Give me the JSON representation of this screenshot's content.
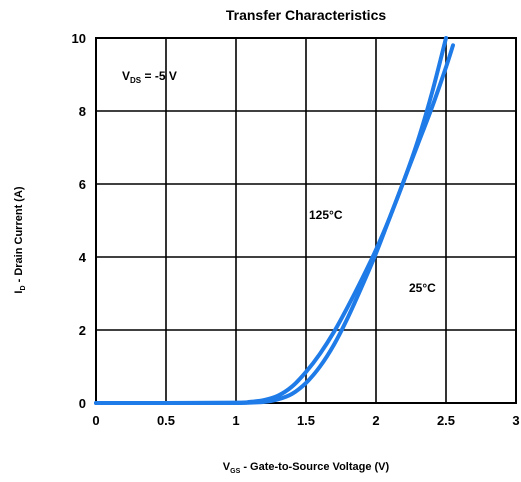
{
  "chart_data": {
    "type": "line",
    "title": "Transfer Characteristics",
    "xlabel_main": "V",
    "xlabel_sub": "GS",
    "xlabel_rest": " - Gate-to-Source Voltage (V)",
    "ylabel_main": "I",
    "ylabel_sub": "D",
    "ylabel_rest": " - Drain Current (A)",
    "xlim": [
      0,
      3
    ],
    "ylim": [
      0,
      10
    ],
    "x_ticks": [
      0,
      0.5,
      1,
      1.5,
      2,
      2.5,
      3
    ],
    "x_tick_labels": [
      "0",
      "0.5",
      "1",
      "1.5",
      "2",
      "2.5",
      "3"
    ],
    "y_ticks": [
      0,
      2,
      4,
      6,
      8,
      10
    ],
    "y_tick_labels": [
      "0",
      "2",
      "4",
      "6",
      "8",
      "10"
    ],
    "grid": true,
    "condition": {
      "main": "V",
      "sub": "DS",
      "rest": " = -5 V"
    },
    "line_color": "#1e7be8",
    "series": [
      {
        "name": "125°C",
        "x": [
          0,
          0.5,
          1.0,
          1.1,
          1.2,
          1.3,
          1.4,
          1.5,
          1.6,
          1.7,
          1.8,
          1.9,
          2.0,
          2.1,
          2.2,
          2.3,
          2.4,
          2.5
        ],
        "y": [
          0,
          0,
          0.01,
          0.03,
          0.08,
          0.2,
          0.45,
          0.85,
          1.35,
          1.95,
          2.65,
          3.4,
          4.2,
          5.1,
          6.1,
          7.2,
          8.5,
          10.0
        ]
      },
      {
        "name": "25°C",
        "x": [
          0,
          0.5,
          1.0,
          1.1,
          1.2,
          1.3,
          1.4,
          1.5,
          1.6,
          1.7,
          1.8,
          1.9,
          2.0,
          2.1,
          2.2,
          2.3,
          2.4,
          2.5,
          2.55
        ],
        "y": [
          0,
          0,
          0,
          0.01,
          0.03,
          0.1,
          0.25,
          0.55,
          1.0,
          1.6,
          2.35,
          3.2,
          4.1,
          5.1,
          6.1,
          7.1,
          8.1,
          9.2,
          9.8
        ]
      }
    ]
  }
}
